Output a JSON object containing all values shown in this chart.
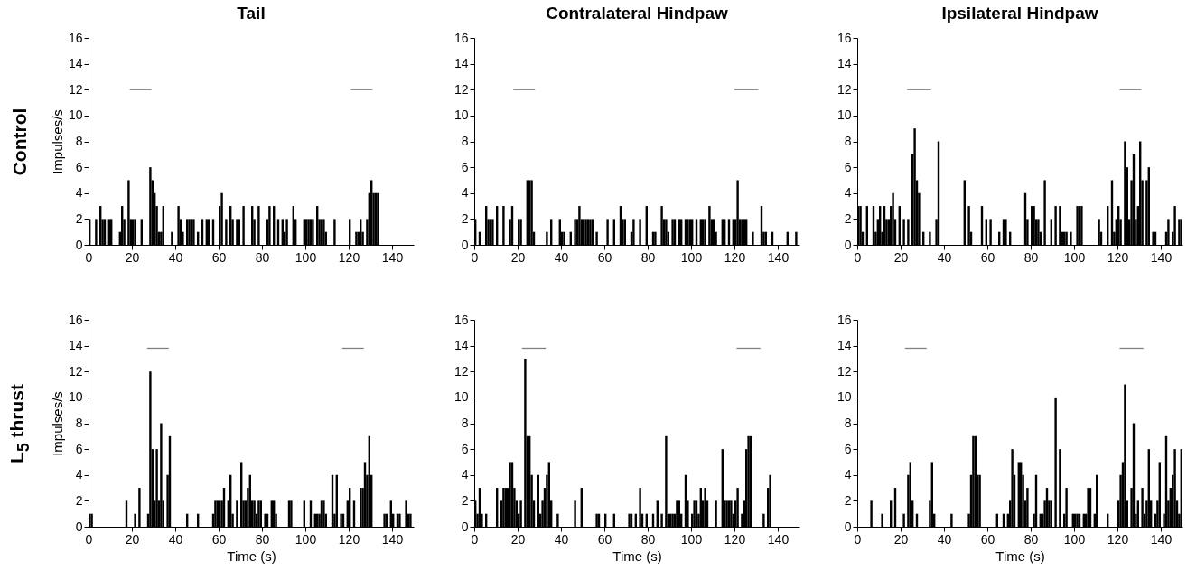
{
  "chart_data": [
    {
      "type": "histogram",
      "title": "Tail",
      "ylabel": "Impulses/s",
      "annotations": [
        "Control"
      ],
      "xlim": [
        0,
        150
      ],
      "ylim": [
        0,
        16
      ],
      "xticks": [
        0,
        20,
        40,
        60,
        80,
        100,
        120,
        140
      ],
      "yticks": [
        0,
        2,
        4,
        6,
        8,
        10,
        12,
        14,
        16
      ],
      "color": "#000000",
      "bins": [
        0,
        1,
        2,
        3,
        4,
        5,
        6,
        7,
        8,
        9,
        10,
        11,
        12,
        13,
        14,
        15,
        16,
        17,
        18,
        19,
        20,
        21,
        22,
        23,
        24,
        25,
        26,
        27,
        28,
        29,
        30,
        31,
        32,
        33,
        34,
        35,
        36,
        37,
        38,
        39,
        40,
        41,
        42,
        43,
        44,
        45,
        46,
        47,
        48,
        49,
        50,
        51,
        52,
        53,
        54,
        55,
        56,
        57,
        58,
        59,
        60,
        61,
        62,
        63,
        64,
        65,
        66,
        67,
        68,
        69,
        70,
        71,
        72,
        73,
        74,
        75,
        76,
        77,
        78,
        79,
        80,
        81,
        82,
        83,
        84,
        85,
        86,
        87,
        88,
        89,
        90,
        91,
        92,
        93,
        94,
        95,
        96,
        97,
        98,
        99,
        100,
        101,
        102,
        103,
        104,
        105,
        106,
        107,
        108,
        109,
        110,
        111,
        112,
        113,
        114,
        115,
        116,
        117,
        118,
        119,
        120,
        121,
        122,
        123,
        124,
        125,
        126,
        127,
        128,
        129,
        130,
        131,
        132,
        133,
        134,
        135,
        136,
        137,
        138,
        139,
        140,
        141,
        142,
        143,
        144,
        145,
        146,
        147,
        148,
        149,
        150
      ],
      "values": [
        2,
        0,
        0,
        2,
        0,
        3,
        2,
        2,
        0,
        2,
        2,
        0,
        0,
        0,
        1,
        3,
        2,
        0,
        5,
        2,
        2,
        2,
        0,
        0,
        2,
        0,
        0,
        0,
        6,
        5,
        4,
        3,
        1,
        1,
        3,
        0,
        0,
        0,
        1,
        0,
        0,
        3,
        2,
        1,
        0,
        2,
        2,
        2,
        2,
        0,
        1,
        0,
        2,
        0,
        2,
        2,
        0,
        2,
        0,
        0,
        3,
        4,
        0,
        2,
        0,
        3,
        2,
        0,
        2,
        2,
        0,
        3,
        0,
        0,
        0,
        3,
        2,
        0,
        3,
        0,
        0,
        0,
        2,
        3,
        0,
        3,
        0,
        2,
        0,
        2,
        1,
        2,
        0,
        0,
        3,
        2,
        0,
        0,
        0,
        2,
        2,
        2,
        2,
        2,
        0,
        3,
        2,
        2,
        2,
        1,
        0,
        0,
        0,
        2,
        0,
        0,
        0,
        0,
        0,
        0,
        2,
        0,
        0,
        1,
        1,
        2,
        1,
        0,
        2,
        4,
        5,
        4,
        4,
        4,
        0,
        0,
        0,
        0,
        0,
        0,
        0,
        0,
        0,
        0,
        0,
        0,
        0,
        0,
        0,
        0
      ],
      "series": [
        {
          "type": "line",
          "color": "#808080",
          "x": [
            19,
            29
          ],
          "values": [
            12,
            12
          ]
        },
        {
          "type": "line",
          "color": "#808080",
          "x": [
            121,
            131
          ],
          "values": [
            12,
            12
          ]
        }
      ]
    },
    {
      "type": "histogram",
      "title": "Contralateral Hindpaw",
      "xlim": [
        0,
        150
      ],
      "ylim": [
        0,
        16
      ],
      "xticks": [
        0,
        20,
        40,
        60,
        80,
        100,
        120,
        140
      ],
      "yticks": [
        0,
        2,
        4,
        6,
        8,
        10,
        12,
        14,
        16
      ],
      "color": "#000000",
      "bins": [
        0,
        1,
        2,
        3,
        4,
        5,
        6,
        7,
        8,
        9,
        10,
        11,
        12,
        13,
        14,
        15,
        16,
        17,
        18,
        19,
        20,
        21,
        22,
        23,
        24,
        25,
        26,
        27,
        28,
        29,
        30,
        31,
        32,
        33,
        34,
        35,
        36,
        37,
        38,
        39,
        40,
        41,
        42,
        43,
        44,
        45,
        46,
        47,
        48,
        49,
        50,
        51,
        52,
        53,
        54,
        55,
        56,
        57,
        58,
        59,
        60,
        61,
        62,
        63,
        64,
        65,
        66,
        67,
        68,
        69,
        70,
        71,
        72,
        73,
        74,
        75,
        76,
        77,
        78,
        79,
        80,
        81,
        82,
        83,
        84,
        85,
        86,
        87,
        88,
        89,
        90,
        91,
        92,
        93,
        94,
        95,
        96,
        97,
        98,
        99,
        100,
        101,
        102,
        103,
        104,
        105,
        106,
        107,
        108,
        109,
        110,
        111,
        112,
        113,
        114,
        115,
        116,
        117,
        118,
        119,
        120,
        121,
        122,
        123,
        124,
        125,
        126,
        127,
        128,
        129,
        130,
        131,
        132,
        133,
        134,
        135,
        136,
        137,
        138,
        139,
        140,
        141,
        142,
        143,
        144,
        145,
        146,
        147,
        148,
        149,
        150
      ],
      "values": [
        2,
        0,
        1,
        0,
        0,
        3,
        2,
        2,
        2,
        0,
        3,
        0,
        0,
        3,
        0,
        0,
        2,
        3,
        0,
        0,
        2,
        2,
        0,
        0,
        5,
        5,
        5,
        1,
        0,
        0,
        0,
        0,
        0,
        1,
        0,
        2,
        0,
        0,
        0,
        2,
        1,
        1,
        0,
        0,
        1,
        0,
        2,
        2,
        3,
        2,
        2,
        2,
        2,
        2,
        2,
        0,
        1,
        0,
        0,
        0,
        0,
        2,
        0,
        0,
        2,
        0,
        0,
        3,
        2,
        2,
        0,
        0,
        1,
        2,
        0,
        0,
        2,
        0,
        0,
        3,
        0,
        0,
        1,
        1,
        0,
        0,
        3,
        2,
        2,
        1,
        0,
        2,
        2,
        0,
        2,
        2,
        0,
        2,
        2,
        2,
        2,
        0,
        2,
        0,
        2,
        2,
        2,
        0,
        3,
        2,
        2,
        1,
        0,
        0,
        2,
        2,
        0,
        2,
        0,
        2,
        2,
        5,
        2,
        2,
        2,
        2,
        0,
        0,
        1,
        0,
        0,
        0,
        3,
        1,
        1,
        0,
        0,
        1,
        0,
        0,
        0,
        0,
        0,
        0,
        1,
        0,
        0,
        0,
        1,
        0
      ],
      "series": [
        {
          "type": "line",
          "color": "#808080",
          "x": [
            18,
            28
          ],
          "values": [
            12,
            12
          ]
        },
        {
          "type": "line",
          "color": "#808080",
          "x": [
            120,
            131
          ],
          "values": [
            12,
            12
          ]
        }
      ]
    },
    {
      "type": "histogram",
      "title": "Ipsilateral Hindpaw",
      "xlim": [
        0,
        150
      ],
      "ylim": [
        0,
        16
      ],
      "xticks": [
        0,
        20,
        40,
        60,
        80,
        100,
        120,
        140
      ],
      "yticks": [
        0,
        2,
        4,
        6,
        8,
        10,
        12,
        14,
        16
      ],
      "color": "#000000",
      "bins": [
        0,
        1,
        2,
        3,
        4,
        5,
        6,
        7,
        8,
        9,
        10,
        11,
        12,
        13,
        14,
        15,
        16,
        17,
        18,
        19,
        20,
        21,
        22,
        23,
        24,
        25,
        26,
        27,
        28,
        29,
        30,
        31,
        32,
        33,
        34,
        35,
        36,
        37,
        38,
        39,
        40,
        41,
        42,
        43,
        44,
        45,
        46,
        47,
        48,
        49,
        50,
        51,
        52,
        53,
        54,
        55,
        56,
        57,
        58,
        59,
        60,
        61,
        62,
        63,
        64,
        65,
        66,
        67,
        68,
        69,
        70,
        71,
        72,
        73,
        74,
        75,
        76,
        77,
        78,
        79,
        80,
        81,
        82,
        83,
        84,
        85,
        86,
        87,
        88,
        89,
        90,
        91,
        92,
        93,
        94,
        95,
        96,
        97,
        98,
        99,
        100,
        101,
        102,
        103,
        104,
        105,
        106,
        107,
        108,
        109,
        110,
        111,
        112,
        113,
        114,
        115,
        116,
        117,
        118,
        119,
        120,
        121,
        122,
        123,
        124,
        125,
        126,
        127,
        128,
        129,
        130,
        131,
        132,
        133,
        134,
        135,
        136,
        137,
        138,
        139,
        140,
        141,
        142,
        143,
        144,
        145,
        146,
        147,
        148,
        149,
        150
      ],
      "values": [
        3,
        3,
        1,
        0,
        3,
        0,
        0,
        3,
        1,
        2,
        3,
        1,
        3,
        2,
        2,
        3,
        4,
        2,
        0,
        3,
        0,
        2,
        0,
        2,
        0,
        7,
        9,
        5,
        4,
        0,
        1,
        0,
        0,
        1,
        0,
        0,
        2,
        8,
        0,
        0,
        0,
        0,
        0,
        0,
        0,
        0,
        0,
        0,
        0,
        5,
        0,
        3,
        1,
        0,
        0,
        0,
        0,
        3,
        0,
        2,
        0,
        2,
        0,
        0,
        0,
        1,
        0,
        2,
        2,
        0,
        1,
        0,
        0,
        0,
        0,
        0,
        0,
        4,
        2,
        0,
        3,
        3,
        2,
        2,
        1,
        0,
        5,
        0,
        0,
        2,
        0,
        3,
        0,
        3,
        1,
        1,
        1,
        0,
        1,
        0,
        0,
        3,
        3,
        3,
        0,
        0,
        0,
        0,
        0,
        0,
        0,
        2,
        1,
        0,
        0,
        3,
        0,
        5,
        1,
        2,
        3,
        2,
        0,
        8,
        6,
        2,
        5,
        7,
        2,
        3,
        8,
        5,
        0,
        5,
        6,
        0,
        1,
        1,
        0,
        0,
        0,
        0,
        1,
        2,
        0,
        1,
        3,
        0,
        2,
        2
      ],
      "series": [
        {
          "type": "line",
          "color": "#808080",
          "x": [
            23,
            34
          ],
          "values": [
            12,
            12
          ]
        },
        {
          "type": "line",
          "color": "#808080",
          "x": [
            121,
            131
          ],
          "values": [
            12,
            12
          ]
        }
      ]
    },
    {
      "type": "histogram",
      "xlabel": "Time (s)",
      "ylabel": "Impulses/s",
      "annotations": [
        "L$_{5}$ thrust"
      ],
      "xlim": [
        0,
        150
      ],
      "ylim": [
        0,
        16
      ],
      "xticks": [
        0,
        20,
        40,
        60,
        80,
        100,
        120,
        140
      ],
      "yticks": [
        0,
        2,
        4,
        6,
        8,
        10,
        12,
        14,
        16
      ],
      "color": "#000000",
      "bins": [
        0,
        1,
        2,
        3,
        4,
        5,
        6,
        7,
        8,
        9,
        10,
        11,
        12,
        13,
        14,
        15,
        16,
        17,
        18,
        19,
        20,
        21,
        22,
        23,
        24,
        25,
        26,
        27,
        28,
        29,
        30,
        31,
        32,
        33,
        34,
        35,
        36,
        37,
        38,
        39,
        40,
        41,
        42,
        43,
        44,
        45,
        46,
        47,
        48,
        49,
        50,
        51,
        52,
        53,
        54,
        55,
        56,
        57,
        58,
        59,
        60,
        61,
        62,
        63,
        64,
        65,
        66,
        67,
        68,
        69,
        70,
        71,
        72,
        73,
        74,
        75,
        76,
        77,
        78,
        79,
        80,
        81,
        82,
        83,
        84,
        85,
        86,
        87,
        88,
        89,
        90,
        91,
        92,
        93,
        94,
        95,
        96,
        97,
        98,
        99,
        100,
        101,
        102,
        103,
        104,
        105,
        106,
        107,
        108,
        109,
        110,
        111,
        112,
        113,
        114,
        115,
        116,
        117,
        118,
        119,
        120,
        121,
        122,
        123,
        124,
        125,
        126,
        127,
        128,
        129,
        130,
        131,
        132,
        133,
        134,
        135,
        136,
        137,
        138,
        139,
        140,
        141,
        142,
        143,
        144,
        145,
        146,
        147,
        148,
        149,
        150
      ],
      "values": [
        1,
        1,
        0,
        0,
        0,
        0,
        0,
        0,
        0,
        0,
        0,
        0,
        0,
        0,
        0,
        0,
        0,
        2,
        0,
        0,
        0,
        1,
        0,
        3,
        0,
        0,
        0,
        1,
        12,
        6,
        2,
        6,
        2,
        8,
        2,
        0,
        4,
        7,
        0,
        0,
        0,
        0,
        0,
        0,
        0,
        1,
        0,
        0,
        0,
        0,
        1,
        0,
        0,
        0,
        0,
        0,
        0,
        1,
        2,
        2,
        2,
        2,
        3,
        0,
        2,
        4,
        1,
        0,
        2,
        0,
        5,
        2,
        2,
        3,
        4,
        2,
        2,
        1,
        2,
        2,
        0,
        1,
        1,
        0,
        2,
        2,
        1,
        0,
        0,
        0,
        0,
        0,
        2,
        2,
        0,
        0,
        0,
        0,
        0,
        2,
        0,
        0,
        2,
        0,
        1,
        1,
        1,
        2,
        2,
        1,
        0,
        0,
        4,
        1,
        4,
        0,
        1,
        1,
        0,
        2,
        3,
        0,
        2,
        0,
        0,
        3,
        3,
        5,
        4,
        7,
        4,
        0,
        0,
        0,
        0,
        0,
        1,
        1,
        0,
        2,
        1,
        0,
        1,
        1,
        0,
        0,
        2,
        1,
        1,
        0
      ],
      "series": [
        {
          "type": "line",
          "color": "#808080",
          "x": [
            27,
            37
          ],
          "values": [
            13.8,
            13.8
          ]
        },
        {
          "type": "line",
          "color": "#808080",
          "x": [
            117,
            127
          ],
          "values": [
            13.8,
            13.8
          ]
        }
      ]
    },
    {
      "type": "histogram",
      "xlabel": "Time (s)",
      "xlim": [
        0,
        150
      ],
      "ylim": [
        0,
        16
      ],
      "xticks": [
        0,
        20,
        40,
        60,
        80,
        100,
        120,
        140
      ],
      "yticks": [
        0,
        2,
        4,
        6,
        8,
        10,
        12,
        14,
        16
      ],
      "color": "#000000",
      "bins": [
        0,
        1,
        2,
        3,
        4,
        5,
        6,
        7,
        8,
        9,
        10,
        11,
        12,
        13,
        14,
        15,
        16,
        17,
        18,
        19,
        20,
        21,
        22,
        23,
        24,
        25,
        26,
        27,
        28,
        29,
        30,
        31,
        32,
        33,
        34,
        35,
        36,
        37,
        38,
        39,
        40,
        41,
        42,
        43,
        44,
        45,
        46,
        47,
        48,
        49,
        50,
        51,
        52,
        53,
        54,
        55,
        56,
        57,
        58,
        59,
        60,
        61,
        62,
        63,
        64,
        65,
        66,
        67,
        68,
        69,
        70,
        71,
        72,
        73,
        74,
        75,
        76,
        77,
        78,
        79,
        80,
        81,
        82,
        83,
        84,
        85,
        86,
        87,
        88,
        89,
        90,
        91,
        92,
        93,
        94,
        95,
        96,
        97,
        98,
        99,
        100,
        101,
        102,
        103,
        104,
        105,
        106,
        107,
        108,
        109,
        110,
        111,
        112,
        113,
        114,
        115,
        116,
        117,
        118,
        119,
        120,
        121,
        122,
        123,
        124,
        125,
        126,
        127,
        128,
        129,
        130,
        131,
        132,
        133,
        134,
        135,
        136,
        137,
        138,
        139,
        140,
        141,
        142,
        143,
        144,
        145,
        146,
        147,
        148,
        149,
        150
      ],
      "values": [
        2,
        1,
        3,
        1,
        0,
        1,
        0,
        0,
        0,
        0,
        3,
        0,
        2,
        3,
        3,
        3,
        5,
        5,
        3,
        2,
        1,
        2,
        0,
        13,
        7,
        7,
        4,
        2,
        0,
        4,
        1,
        2,
        3,
        4,
        5,
        2,
        0,
        0,
        1,
        0,
        0,
        0,
        0,
        0,
        0,
        0,
        2,
        0,
        0,
        3,
        0,
        0,
        0,
        0,
        0,
        0,
        1,
        1,
        0,
        0,
        1,
        0,
        0,
        0,
        1,
        0,
        0,
        0,
        0,
        0,
        0,
        1,
        1,
        0,
        1,
        0,
        3,
        1,
        0,
        1,
        0,
        0,
        1,
        0,
        2,
        0,
        1,
        0,
        7,
        1,
        1,
        1,
        1,
        2,
        2,
        1,
        0,
        4,
        2,
        0,
        1,
        2,
        2,
        1,
        3,
        2,
        3,
        2,
        0,
        0,
        0,
        2,
        0,
        0,
        6,
        2,
        2,
        2,
        2,
        1,
        2,
        3,
        0,
        1,
        2,
        6,
        7,
        7,
        0,
        0,
        0,
        0,
        0,
        1,
        0,
        3,
        4,
        0,
        0,
        0,
        0,
        0,
        0,
        0,
        0,
        0,
        0,
        0,
        0,
        0
      ],
      "series": [
        {
          "type": "line",
          "color": "#808080",
          "x": [
            22,
            33
          ],
          "values": [
            13.8,
            13.8
          ]
        },
        {
          "type": "line",
          "color": "#808080",
          "x": [
            121,
            132
          ],
          "values": [
            13.8,
            13.8
          ]
        }
      ]
    },
    {
      "type": "histogram",
      "xlabel": "Time (s)",
      "xlim": [
        0,
        150
      ],
      "ylim": [
        0,
        16
      ],
      "xticks": [
        0,
        20,
        40,
        60,
        80,
        100,
        120,
        140
      ],
      "yticks": [
        0,
        2,
        4,
        6,
        8,
        10,
        12,
        14,
        16
      ],
      "color": "#000000",
      "bins": [
        0,
        1,
        2,
        3,
        4,
        5,
        6,
        7,
        8,
        9,
        10,
        11,
        12,
        13,
        14,
        15,
        16,
        17,
        18,
        19,
        20,
        21,
        22,
        23,
        24,
        25,
        26,
        27,
        28,
        29,
        30,
        31,
        32,
        33,
        34,
        35,
        36,
        37,
        38,
        39,
        40,
        41,
        42,
        43,
        44,
        45,
        46,
        47,
        48,
        49,
        50,
        51,
        52,
        53,
        54,
        55,
        56,
        57,
        58,
        59,
        60,
        61,
        62,
        63,
        64,
        65,
        66,
        67,
        68,
        69,
        70,
        71,
        72,
        73,
        74,
        75,
        76,
        77,
        78,
        79,
        80,
        81,
        82,
        83,
        84,
        85,
        86,
        87,
        88,
        89,
        90,
        91,
        92,
        93,
        94,
        95,
        96,
        97,
        98,
        99,
        100,
        101,
        102,
        103,
        104,
        105,
        106,
        107,
        108,
        109,
        110,
        111,
        112,
        113,
        114,
        115,
        116,
        117,
        118,
        119,
        120,
        121,
        122,
        123,
        124,
        125,
        126,
        127,
        128,
        129,
        130,
        131,
        132,
        133,
        134,
        135,
        136,
        137,
        138,
        139,
        140,
        141,
        142,
        143,
        144,
        145,
        146,
        147,
        148,
        149,
        150
      ],
      "values": [
        0,
        0,
        0,
        0,
        0,
        0,
        2,
        0,
        0,
        0,
        0,
        1,
        0,
        0,
        0,
        2,
        0,
        3,
        0,
        0,
        0,
        1,
        0,
        4,
        5,
        2,
        0,
        1,
        0,
        0,
        0,
        0,
        0,
        2,
        5,
        1,
        0,
        0,
        0,
        0,
        0,
        0,
        0,
        1,
        0,
        0,
        0,
        0,
        0,
        0,
        0,
        1,
        4,
        7,
        7,
        4,
        4,
        0,
        0,
        0,
        0,
        0,
        0,
        0,
        1,
        0,
        0,
        1,
        0,
        1,
        2,
        6,
        4,
        0,
        5,
        5,
        4,
        2,
        3,
        0,
        0,
        1,
        4,
        0,
        1,
        1,
        2,
        3,
        2,
        2,
        0,
        10,
        0,
        6,
        0,
        1,
        3,
        0,
        0,
        1,
        1,
        1,
        1,
        0,
        1,
        1,
        3,
        3,
        0,
        1,
        4,
        0,
        0,
        0,
        0,
        1,
        0,
        0,
        0,
        0,
        2,
        4,
        5,
        11,
        2,
        0,
        3,
        8,
        1,
        2,
        0,
        3,
        1,
        2,
        6,
        2,
        0,
        1,
        2,
        5,
        0,
        1,
        7,
        2,
        3,
        4,
        6,
        2,
        1,
        6
      ],
      "series": [
        {
          "type": "line",
          "color": "#808080",
          "x": [
            22,
            32
          ],
          "values": [
            13.8,
            13.8
          ]
        },
        {
          "type": "line",
          "color": "#808080",
          "x": [
            121,
            132
          ],
          "values": [
            13.8,
            13.8
          ]
        }
      ]
    }
  ]
}
